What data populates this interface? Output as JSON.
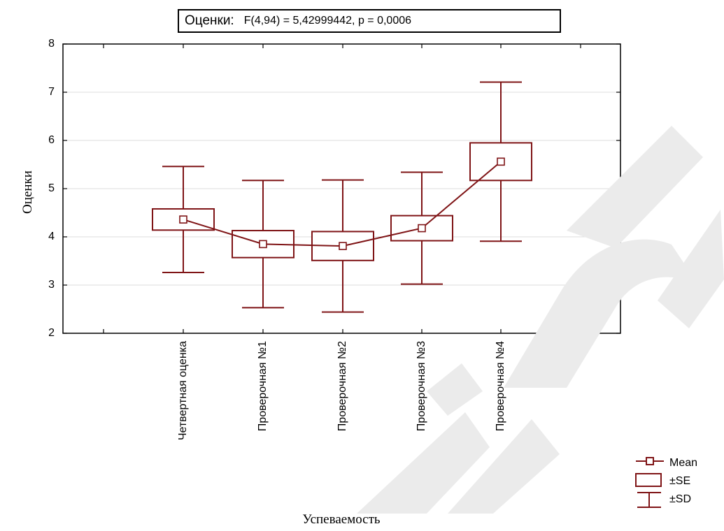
{
  "chart_data": {
    "type": "box",
    "title": "Оценки:",
    "subtitle": "F(4,94) = 5,42999442, p = 0,0006",
    "xlabel": "Успеваемость",
    "ylabel": "Оценки",
    "ylim": [
      2,
      8
    ],
    "yticks": [
      "2",
      "3",
      "4",
      "5",
      "6",
      "7",
      "8"
    ],
    "categories": [
      "Четвертная оценка",
      "Проверочная №1",
      "Проверочная №2",
      "Проверочная №3",
      "Проверочная №4"
    ],
    "mean": [
      4.36,
      3.85,
      3.81,
      4.18,
      5.56
    ],
    "se": [
      0.22,
      0.28,
      0.3,
      0.26,
      0.39
    ],
    "sd": [
      1.1,
      1.32,
      1.37,
      1.16,
      1.65
    ],
    "grid": true,
    "legend_position": "bottom-right",
    "legend": [
      "Mean",
      "±SE",
      "±SD"
    ],
    "color": "#7f1416",
    "watermark_color": "#ebebeb"
  }
}
